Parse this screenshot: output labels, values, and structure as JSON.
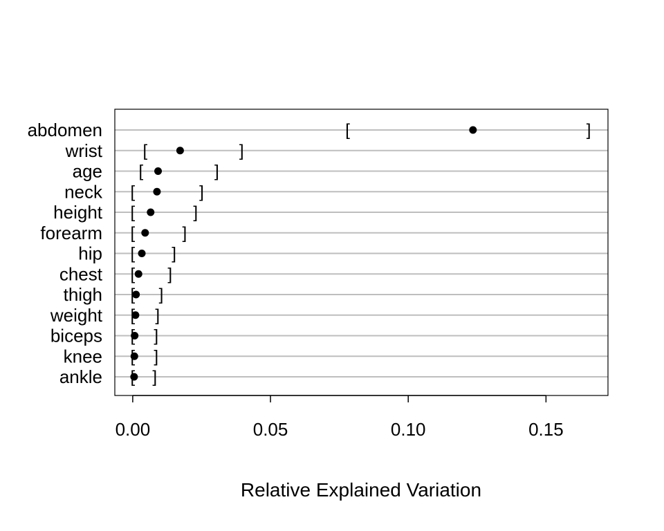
{
  "chart_data": {
    "type": "scatter",
    "title": "",
    "xlabel": "Relative Explained Variation",
    "ylabel": "",
    "xlim": [
      -0.0065,
      0.1725
    ],
    "grid": "horizontal",
    "legend": "none",
    "xticks": [
      {
        "value": 0.0,
        "label": "0.00"
      },
      {
        "value": 0.05,
        "label": "0.05"
      },
      {
        "value": 0.1,
        "label": "0.10"
      },
      {
        "value": 0.15,
        "label": "0.15"
      }
    ],
    "categories": [
      "abdomen",
      "wrist",
      "age",
      "neck",
      "height",
      "forearm",
      "hip",
      "chest",
      "thigh",
      "weight",
      "biceps",
      "knee",
      "ankle"
    ],
    "values": [
      0.1235,
      0.0172,
      0.0092,
      0.0088,
      0.0065,
      0.0045,
      0.0033,
      0.0021,
      0.0012,
      0.001,
      0.0007,
      0.0006,
      0.0005
    ],
    "lower": [
      0.078,
      0.0045,
      0.003,
      0.0,
      0.0,
      0.0,
      0.0,
      0.0,
      0.0,
      0.0,
      0.0,
      0.0,
      0.0
    ],
    "upper": [
      0.1655,
      0.0395,
      0.0305,
      0.025,
      0.0228,
      0.0188,
      0.015,
      0.0135,
      0.0103,
      0.009,
      0.0085,
      0.0085,
      0.008
    ],
    "colors": {
      "grid": "#bebebe",
      "point": "#000000",
      "frame": "#000000"
    }
  }
}
